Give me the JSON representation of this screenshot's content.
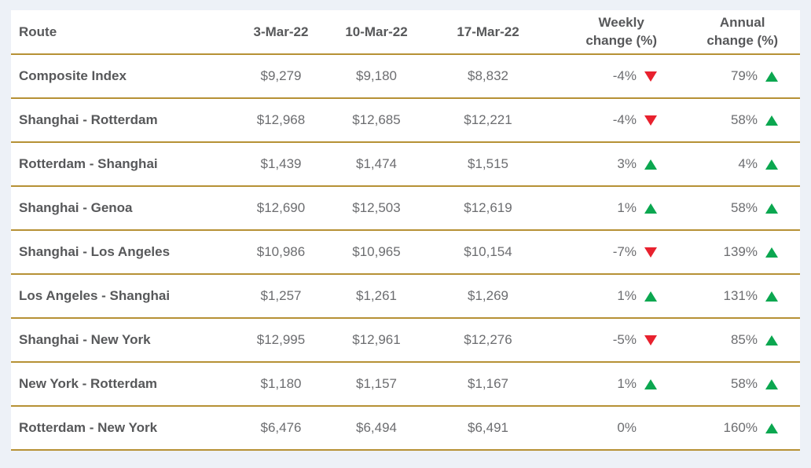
{
  "colors": {
    "page_background": "#edf1f7",
    "table_background": "#ffffff",
    "separator_gold": "#b69135",
    "header_text": "#57585a",
    "value_text": "#6c6d70",
    "positive_green": "#0ba750",
    "negative_red": "#e8212e"
  },
  "table": {
    "header": {
      "route": "Route",
      "d1": "3-Mar-22",
      "d2": "10-Mar-22",
      "d3": "17-Mar-22",
      "weekly_top": "Weekly",
      "weekly_bottom": "change (%)",
      "annual_top": "Annual",
      "annual_bottom": "change (%)"
    },
    "rows": [
      {
        "route": "Composite Index",
        "v1": "$9,279",
        "v2": "$9,180",
        "v3": "$8,832",
        "weekly": "-4%",
        "weekly_dir": "down",
        "annual": "79%",
        "annual_dir": "up"
      },
      {
        "route": "Shanghai - Rotterdam",
        "v1": "$12,968",
        "v2": "$12,685",
        "v3": "$12,221",
        "weekly": "-4%",
        "weekly_dir": "down",
        "annual": "58%",
        "annual_dir": "up"
      },
      {
        "route": "Rotterdam - Shanghai",
        "v1": "$1,439",
        "v2": "$1,474",
        "v3": "$1,515",
        "weekly": "3%",
        "weekly_dir": "up",
        "annual": "4%",
        "annual_dir": "up"
      },
      {
        "route": "Shanghai - Genoa",
        "v1": "$12,690",
        "v2": "$12,503",
        "v3": "$12,619",
        "weekly": "1%",
        "weekly_dir": "up",
        "annual": "58%",
        "annual_dir": "up"
      },
      {
        "route": "Shanghai - Los Angeles",
        "v1": "$10,986",
        "v2": "$10,965",
        "v3": "$10,154",
        "weekly": "-7%",
        "weekly_dir": "down",
        "annual": "139%",
        "annual_dir": "up"
      },
      {
        "route": "Los Angeles - Shanghai",
        "v1": "$1,257",
        "v2": "$1,261",
        "v3": "$1,269",
        "weekly": "1%",
        "weekly_dir": "up",
        "annual": "131%",
        "annual_dir": "up"
      },
      {
        "route": "Shanghai - New York",
        "v1": "$12,995",
        "v2": "$12,961",
        "v3": "$12,276",
        "weekly": "-5%",
        "weekly_dir": "down",
        "annual": "85%",
        "annual_dir": "up"
      },
      {
        "route": "New York - Rotterdam",
        "v1": "$1,180",
        "v2": "$1,157",
        "v3": "$1,167",
        "weekly": "1%",
        "weekly_dir": "up",
        "annual": "58%",
        "annual_dir": "up"
      },
      {
        "route": "Rotterdam - New York",
        "v1": "$6,476",
        "v2": "$6,494",
        "v3": "$6,491",
        "weekly": "0%",
        "weekly_dir": "none",
        "annual": "160%",
        "annual_dir": "up"
      }
    ]
  },
  "chart_data": {
    "type": "table",
    "columns": [
      "Route",
      "3-Mar-22",
      "10-Mar-22",
      "17-Mar-22",
      "Weekly change (%)",
      "Annual change (%)"
    ],
    "rows": [
      {
        "route": "Composite Index",
        "rates_usd": [
          9279,
          9180,
          8832
        ],
        "weekly_change_pct": -4,
        "annual_change_pct": 79
      },
      {
        "route": "Shanghai - Rotterdam",
        "rates_usd": [
          12968,
          12685,
          12221
        ],
        "weekly_change_pct": -4,
        "annual_change_pct": 58
      },
      {
        "route": "Rotterdam - Shanghai",
        "rates_usd": [
          1439,
          1474,
          1515
        ],
        "weekly_change_pct": 3,
        "annual_change_pct": 4
      },
      {
        "route": "Shanghai - Genoa",
        "rates_usd": [
          12690,
          12503,
          12619
        ],
        "weekly_change_pct": 1,
        "annual_change_pct": 58
      },
      {
        "route": "Shanghai - Los Angeles",
        "rates_usd": [
          10986,
          10965,
          10154
        ],
        "weekly_change_pct": -7,
        "annual_change_pct": 139
      },
      {
        "route": "Los Angeles - Shanghai",
        "rates_usd": [
          1257,
          1261,
          1269
        ],
        "weekly_change_pct": 1,
        "annual_change_pct": 131
      },
      {
        "route": "Shanghai - New York",
        "rates_usd": [
          12995,
          12961,
          12276
        ],
        "weekly_change_pct": -5,
        "annual_change_pct": 85
      },
      {
        "route": "New York - Rotterdam",
        "rates_usd": [
          1180,
          1157,
          1167
        ],
        "weekly_change_pct": 1,
        "annual_change_pct": 58
      },
      {
        "route": "Rotterdam - New York",
        "rates_usd": [
          6476,
          6494,
          6491
        ],
        "weekly_change_pct": 0,
        "annual_change_pct": 160
      }
    ],
    "legend": {
      "up_triangle_green": "increase",
      "down_triangle_red": "decrease"
    },
    "layout": {
      "grid": "horizontal gold separators only",
      "value_format": "$#,###"
    }
  }
}
